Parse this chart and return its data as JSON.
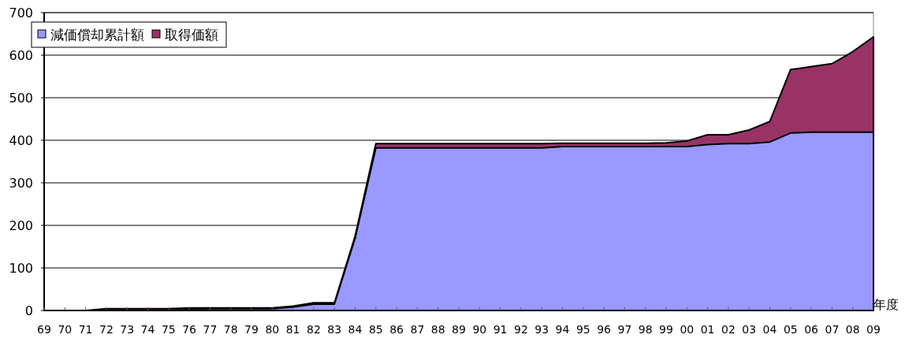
{
  "chart_data": {
    "type": "area",
    "xlabel": "年度",
    "categories": [
      "69",
      "70",
      "71",
      "72",
      "73",
      "74",
      "75",
      "76",
      "77",
      "78",
      "79",
      "80",
      "81",
      "82",
      "83",
      "84",
      "85",
      "86",
      "87",
      "88",
      "89",
      "90",
      "91",
      "92",
      "93",
      "94",
      "95",
      "96",
      "97",
      "98",
      "99",
      "00",
      "01",
      "02",
      "03",
      "04",
      "05",
      "06",
      "07",
      "08",
      "09"
    ],
    "series": [
      {
        "name": "減価償却累計額",
        "color": "#9999ff",
        "values": [
          0,
          0,
          0,
          0,
          0,
          0,
          0,
          3,
          4,
          4,
          4,
          4,
          8,
          15,
          15,
          170,
          382,
          382,
          382,
          382,
          382,
          382,
          382,
          382,
          382,
          385,
          385,
          385,
          385,
          385,
          385,
          385,
          390,
          392,
          392,
          396,
          417,
          419,
          419,
          419,
          419
        ]
      },
      {
        "name": "取得価額",
        "color": "#993366",
        "values": [
          0,
          0,
          0,
          4,
          4,
          4,
          4,
          6,
          6,
          6,
          6,
          6,
          10,
          18,
          18,
          175,
          392,
          392,
          392,
          392,
          392,
          392,
          392,
          392,
          392,
          393,
          393,
          393,
          393,
          393,
          394,
          398,
          413,
          413,
          424,
          444,
          566,
          573,
          580,
          608,
          643
        ]
      }
    ],
    "ylim": [
      0,
      700
    ],
    "yticks": [
      0,
      100,
      200,
      300,
      400,
      500,
      600,
      700
    ],
    "grid": "y",
    "legend": "top left"
  }
}
